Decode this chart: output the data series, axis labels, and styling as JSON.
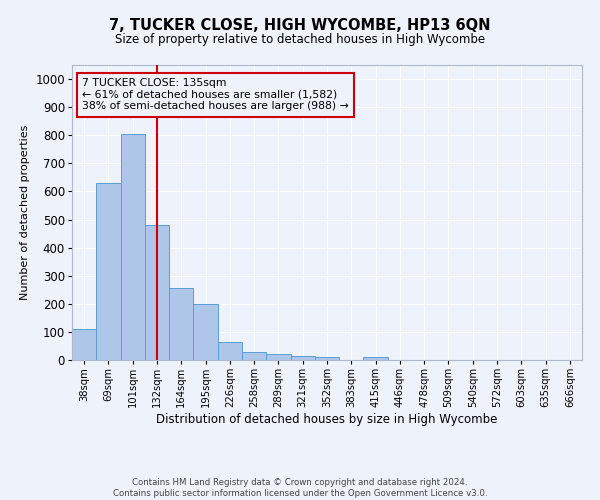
{
  "title": "7, TUCKER CLOSE, HIGH WYCOMBE, HP13 6QN",
  "subtitle": "Size of property relative to detached houses in High Wycombe",
  "xlabel": "Distribution of detached houses by size in High Wycombe",
  "ylabel": "Number of detached properties",
  "footnote1": "Contains HM Land Registry data © Crown copyright and database right 2024.",
  "footnote2": "Contains public sector information licensed under the Open Government Licence v3.0.",
  "bar_labels": [
    "38sqm",
    "69sqm",
    "101sqm",
    "132sqm",
    "164sqm",
    "195sqm",
    "226sqm",
    "258sqm",
    "289sqm",
    "321sqm",
    "352sqm",
    "383sqm",
    "415sqm",
    "446sqm",
    "478sqm",
    "509sqm",
    "540sqm",
    "572sqm",
    "603sqm",
    "635sqm",
    "666sqm"
  ],
  "bar_values": [
    110,
    630,
    805,
    480,
    255,
    200,
    63,
    30,
    22,
    13,
    10,
    0,
    12,
    0,
    0,
    0,
    0,
    0,
    0,
    0,
    0
  ],
  "property_line_index": 3,
  "annotation_line1": "7 TUCKER CLOSE: 135sqm",
  "annotation_line2": "← 61% of detached houses are smaller (1,582)",
  "annotation_line3": "38% of semi-detached houses are larger (988) →",
  "bar_color": "#aec6e8",
  "bar_edge_color": "#5a9fd4",
  "line_color": "#cc0000",
  "annotation_box_color": "#cc0000",
  "ylim": [
    0,
    1050
  ],
  "yticks": [
    0,
    100,
    200,
    300,
    400,
    500,
    600,
    700,
    800,
    900,
    1000
  ],
  "background_color": "#eef2fb",
  "grid_color": "#ffffff"
}
